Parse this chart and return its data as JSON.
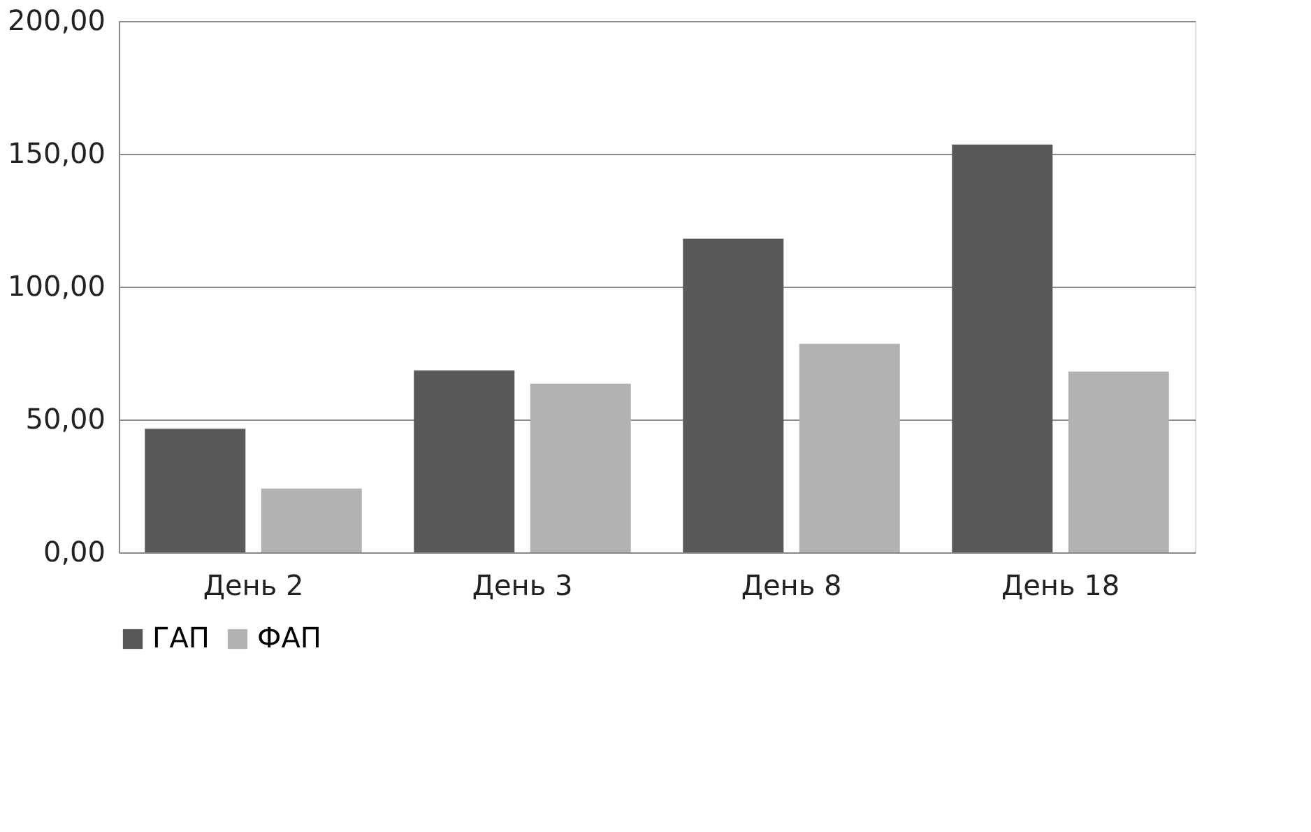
{
  "chart_data": {
    "type": "bar",
    "categories": [
      "День 2",
      "День 3",
      "День 8",
      "День 18"
    ],
    "series": [
      {
        "name": "ГАП",
        "color": "#595959",
        "values": [
          46.5,
          68.5,
          118,
          153.5
        ]
      },
      {
        "name": "ФАП",
        "color": "#b2b2b2",
        "values": [
          24,
          63.5,
          78.5,
          68
        ]
      }
    ],
    "ylim": [
      0,
      200
    ],
    "yticks": [
      {
        "value": 0,
        "label": "0,00"
      },
      {
        "value": 50,
        "label": "50,00"
      },
      {
        "value": 100,
        "label": "100,00"
      },
      {
        "value": 150,
        "label": "150,00"
      },
      {
        "value": 200,
        "label": "200,00"
      }
    ],
    "grid": "y",
    "legend": "bottom"
  }
}
